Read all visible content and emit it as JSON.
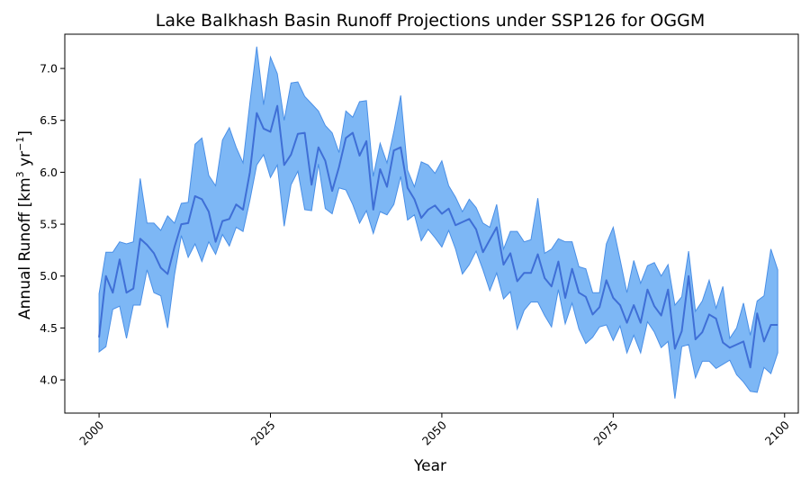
{
  "chart_data": {
    "type": "line",
    "title": "Lake Balkhash Basin Runoff Projections under SSP126 for OGGM",
    "xlabel": "Year",
    "ylabel_main": "Annual Runoff [km",
    "ylabel_sup1": "3",
    "ylabel_mid": " yr",
    "ylabel_sup2": "−1",
    "ylabel_end": "]",
    "xlim": [
      1995.0,
      2102.0
    ],
    "ylim": [
      3.68,
      7.33
    ],
    "x_ticks": [
      2000,
      2025,
      2050,
      2075,
      2100
    ],
    "x_tick_labels": [
      "2000",
      "2025",
      "2050",
      "2075",
      "2100"
    ],
    "y_ticks": [
      4.0,
      4.5,
      5.0,
      5.5,
      6.0,
      6.5,
      7.0
    ],
    "y_tick_labels": [
      "4.0",
      "4.5",
      "5.0",
      "5.5",
      "6.0",
      "6.5",
      "7.0"
    ],
    "grid": false,
    "legend": "none",
    "colors": {
      "mean_line": "#3f6fd6",
      "band_fill": "#7db7f5",
      "band_edge": "#4a8fe6"
    },
    "x": [
      2000,
      2001,
      2002,
      2003,
      2004,
      2005,
      2006,
      2007,
      2008,
      2009,
      2010,
      2011,
      2012,
      2013,
      2014,
      2015,
      2016,
      2017,
      2018,
      2019,
      2020,
      2021,
      2022,
      2023,
      2024,
      2025,
      2026,
      2027,
      2028,
      2029,
      2030,
      2031,
      2032,
      2033,
      2034,
      2035,
      2036,
      2037,
      2038,
      2039,
      2040,
      2041,
      2042,
      2043,
      2044,
      2045,
      2046,
      2047,
      2048,
      2049,
      2050,
      2051,
      2052,
      2053,
      2054,
      2055,
      2056,
      2057,
      2058,
      2059,
      2060,
      2061,
      2062,
      2063,
      2064,
      2065,
      2066,
      2067,
      2068,
      2069,
      2070,
      2071,
      2072,
      2073,
      2074,
      2075,
      2076,
      2077,
      2078,
      2079,
      2080,
      2081,
      2082,
      2083,
      2084,
      2085,
      2086,
      2087,
      2088,
      2089,
      2090,
      2091,
      2092,
      2093,
      2094,
      2095,
      2096,
      2097,
      2098,
      2099
    ],
    "series": [
      {
        "role": "mean",
        "values": [
          4.41,
          5.0,
          4.84,
          5.16,
          4.84,
          4.88,
          5.36,
          5.3,
          5.22,
          5.08,
          5.02,
          5.28,
          5.5,
          5.51,
          5.77,
          5.74,
          5.62,
          5.33,
          5.53,
          5.55,
          5.69,
          5.64,
          6.0,
          6.57,
          6.42,
          6.39,
          6.64,
          6.07,
          6.17,
          6.37,
          6.38,
          5.88,
          6.24,
          6.11,
          5.82,
          6.05,
          6.33,
          6.38,
          6.16,
          6.3,
          5.64,
          6.03,
          5.86,
          6.21,
          6.24,
          5.85,
          5.74,
          5.56,
          5.64,
          5.68,
          5.6,
          5.65,
          5.49,
          5.52,
          5.55,
          5.45,
          5.23,
          5.35,
          5.47,
          5.11,
          5.22,
          4.95,
          5.03,
          5.03,
          5.21,
          4.98,
          4.9,
          5.14,
          4.79,
          5.07,
          4.84,
          4.8,
          4.63,
          4.7,
          4.96,
          4.79,
          4.72,
          4.55,
          4.72,
          4.55,
          4.87,
          4.71,
          4.62,
          4.87,
          4.3,
          4.47,
          5.0,
          4.39,
          4.46,
          4.63,
          4.59,
          4.36,
          4.31,
          4.34,
          4.37,
          4.12,
          4.64,
          4.37,
          4.53,
          4.53
        ]
      },
      {
        "role": "upper",
        "values": [
          4.83,
          5.23,
          5.23,
          5.33,
          5.31,
          5.33,
          5.94,
          5.51,
          5.51,
          5.44,
          5.58,
          5.51,
          5.7,
          5.71,
          6.27,
          6.33,
          5.97,
          5.87,
          6.31,
          6.43,
          6.24,
          6.09,
          6.67,
          7.21,
          6.65,
          7.11,
          6.95,
          6.5,
          6.86,
          6.87,
          6.73,
          6.66,
          6.59,
          6.45,
          6.38,
          6.19,
          6.59,
          6.53,
          6.68,
          6.69,
          5.96,
          6.28,
          6.09,
          6.39,
          6.74,
          6.02,
          5.86,
          6.1,
          6.07,
          5.99,
          6.11,
          5.87,
          5.76,
          5.62,
          5.74,
          5.66,
          5.51,
          5.47,
          5.69,
          5.26,
          5.43,
          5.43,
          5.33,
          5.35,
          5.75,
          5.22,
          5.26,
          5.36,
          5.33,
          5.33,
          5.09,
          5.07,
          4.84,
          4.84,
          5.31,
          5.47,
          5.16,
          4.84,
          5.15,
          4.93,
          5.1,
          5.13,
          5.0,
          5.11,
          4.72,
          4.8,
          5.24,
          4.66,
          4.76,
          4.96,
          4.69,
          4.9,
          4.4,
          4.5,
          4.74,
          4.43,
          4.76,
          4.81,
          5.26,
          5.06
        ]
      },
      {
        "role": "lower",
        "values": [
          4.27,
          4.32,
          4.68,
          4.71,
          4.4,
          4.72,
          4.72,
          5.06,
          4.84,
          4.81,
          4.5,
          5.01,
          5.39,
          5.18,
          5.31,
          5.14,
          5.33,
          5.21,
          5.4,
          5.29,
          5.47,
          5.43,
          5.73,
          6.07,
          6.17,
          5.95,
          6.07,
          5.48,
          5.88,
          6.01,
          5.64,
          5.63,
          6.08,
          5.65,
          5.6,
          5.85,
          5.83,
          5.69,
          5.51,
          5.63,
          5.41,
          5.62,
          5.59,
          5.69,
          5.96,
          5.54,
          5.59,
          5.34,
          5.45,
          5.37,
          5.28,
          5.44,
          5.26,
          5.02,
          5.11,
          5.24,
          5.06,
          4.86,
          5.03,
          4.78,
          4.85,
          4.49,
          4.67,
          4.75,
          4.75,
          4.62,
          4.51,
          4.87,
          4.54,
          4.74,
          4.49,
          4.35,
          4.41,
          4.51,
          4.53,
          4.38,
          4.52,
          4.26,
          4.43,
          4.26,
          4.56,
          4.46,
          4.31,
          4.37,
          3.82,
          4.32,
          4.34,
          4.02,
          4.18,
          4.18,
          4.11,
          4.15,
          4.19,
          4.05,
          3.98,
          3.89,
          3.88,
          4.12,
          4.06,
          4.26
        ]
      }
    ]
  }
}
